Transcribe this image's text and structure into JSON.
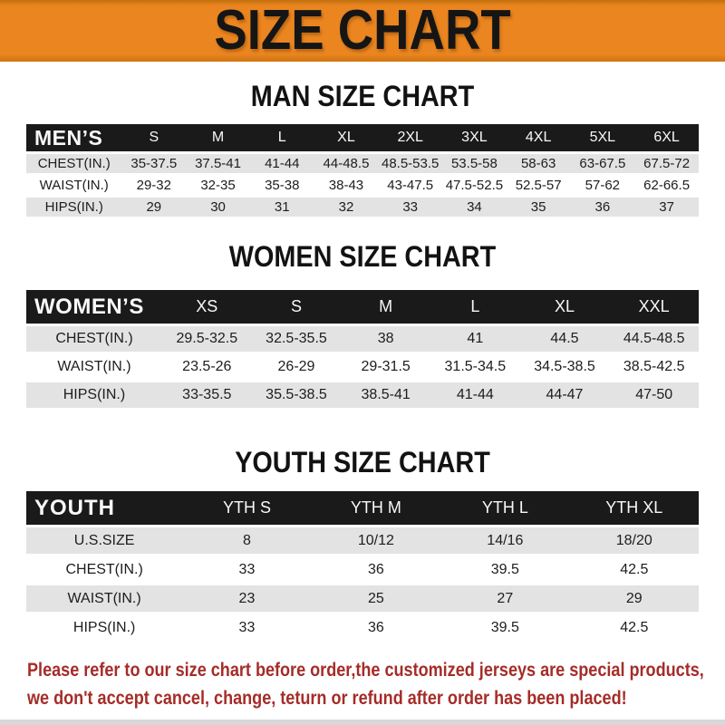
{
  "banner": {
    "title": "SIZE CHART"
  },
  "sections": [
    {
      "id": "men",
      "title": "MAN SIZE CHART",
      "table": {
        "header": [
          "MEN’S",
          "S",
          "M",
          "L",
          "XL",
          "2XL",
          "3XL",
          "4XL",
          "5XL",
          "6XL"
        ],
        "rows": [
          {
            "label": "CHEST(IN.)",
            "values": [
              "35-37.5",
              "37.5-41",
              "41-44",
              "44-48.5",
              "48.5-53.5",
              "53.5-58",
              "58-63",
              "63-67.5",
              "67.5-72"
            ]
          },
          {
            "label": "WAIST(IN.)",
            "values": [
              "29-32",
              "32-35",
              "35-38",
              "38-43",
              "43-47.5",
              "47.5-52.5",
              "52.5-57",
              "57-62",
              "62-66.5"
            ]
          },
          {
            "label": "HIPS(IN.)",
            "values": [
              "29",
              "30",
              "31",
              "32",
              "33",
              "34",
              "35",
              "36",
              "37"
            ]
          }
        ]
      }
    },
    {
      "id": "women",
      "title": "WOMEN SIZE CHART",
      "table": {
        "header": [
          "WOMEN’S",
          "XS",
          "S",
          "M",
          "L",
          "XL",
          "XXL"
        ],
        "rows": [
          {
            "label": "CHEST(IN.)",
            "values": [
              "29.5-32.5",
              "32.5-35.5",
              "38",
              "41",
              "44.5",
              "44.5-48.5"
            ]
          },
          {
            "label": "WAIST(IN.)",
            "values": [
              "23.5-26",
              "26-29",
              "29-31.5",
              "31.5-34.5",
              "34.5-38.5",
              "38.5-42.5"
            ]
          },
          {
            "label": "HIPS(IN.)",
            "values": [
              "33-35.5",
              "35.5-38.5",
              "38.5-41",
              "41-44",
              "44-47",
              "47-50"
            ]
          }
        ]
      }
    },
    {
      "id": "youth",
      "title": "YOUTH SIZE CHART",
      "table": {
        "header": [
          "YOUTH",
          "YTH S",
          "YTH M",
          "YTH L",
          "YTH XL"
        ],
        "rows": [
          {
            "label": "U.S.SIZE",
            "values": [
              "8",
              "10/12",
              "14/16",
              "18/20"
            ]
          },
          {
            "label": "CHEST(IN.)",
            "values": [
              "33",
              "36",
              "39.5",
              "42.5"
            ]
          },
          {
            "label": "WAIST(IN.)",
            "values": [
              "23",
              "25",
              "27",
              "29"
            ]
          },
          {
            "label": "HIPS(IN.)",
            "values": [
              "33",
              "36",
              "39.5",
              "42.5"
            ]
          }
        ]
      }
    }
  ],
  "footer": {
    "lines": [
      "Please refer to our size chart before order,the customized jerseys are special products,",
      "we don't accept cancel, change, teturn or refund after order has been placed!"
    ]
  },
  "colors": {
    "banner_orange": "#ea8520",
    "header_black": "#1a1a1a",
    "row_gray": "#e3e3e3",
    "footer_red": "#a52c28"
  }
}
